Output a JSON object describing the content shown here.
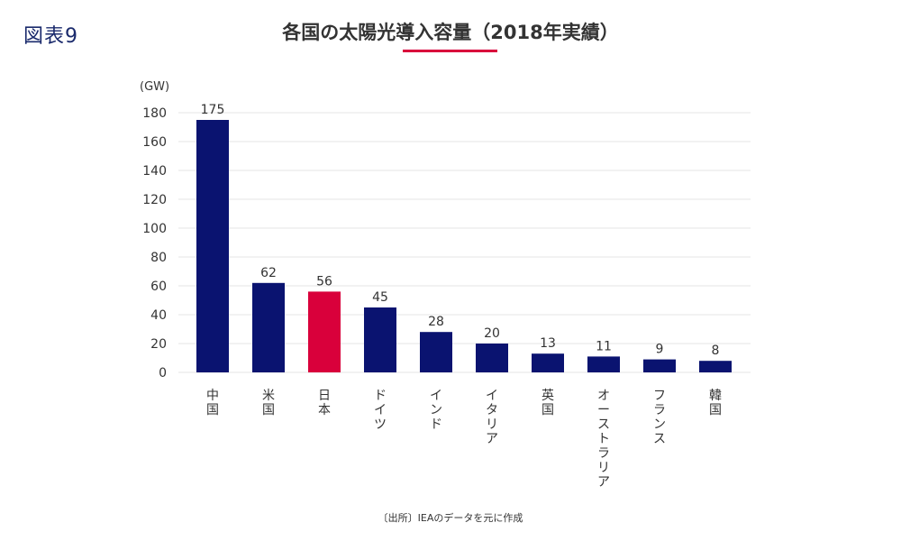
{
  "figure_label": "図表9",
  "source_note": "〔出所〕IEAのデータを元に作成",
  "colors": {
    "bar": "#0a1370",
    "highlight": "#d9003b",
    "grid": "#e4e4e4",
    "text": "#333333"
  },
  "chart_data": {
    "type": "bar",
    "title": "各国の太陽光導入容量（2018年実績）",
    "ylabel": "(GW)",
    "xlabel": "",
    "ylim": [
      0,
      180
    ],
    "yticks": [
      0,
      20,
      40,
      60,
      80,
      100,
      120,
      140,
      160,
      180
    ],
    "categories": [
      "中国",
      "米国",
      "日本",
      "ドイツ",
      "インド",
      "イタリア",
      "英国",
      "オーストラリア",
      "フランス",
      "韓国"
    ],
    "values": [
      175,
      62,
      56,
      45,
      28,
      20,
      13,
      11,
      9,
      8
    ],
    "data_labels": [
      "175",
      "62",
      "56",
      "45",
      "28",
      "20",
      "13",
      "11",
      "9",
      "8"
    ],
    "highlight_category": "日本",
    "grid": true
  }
}
